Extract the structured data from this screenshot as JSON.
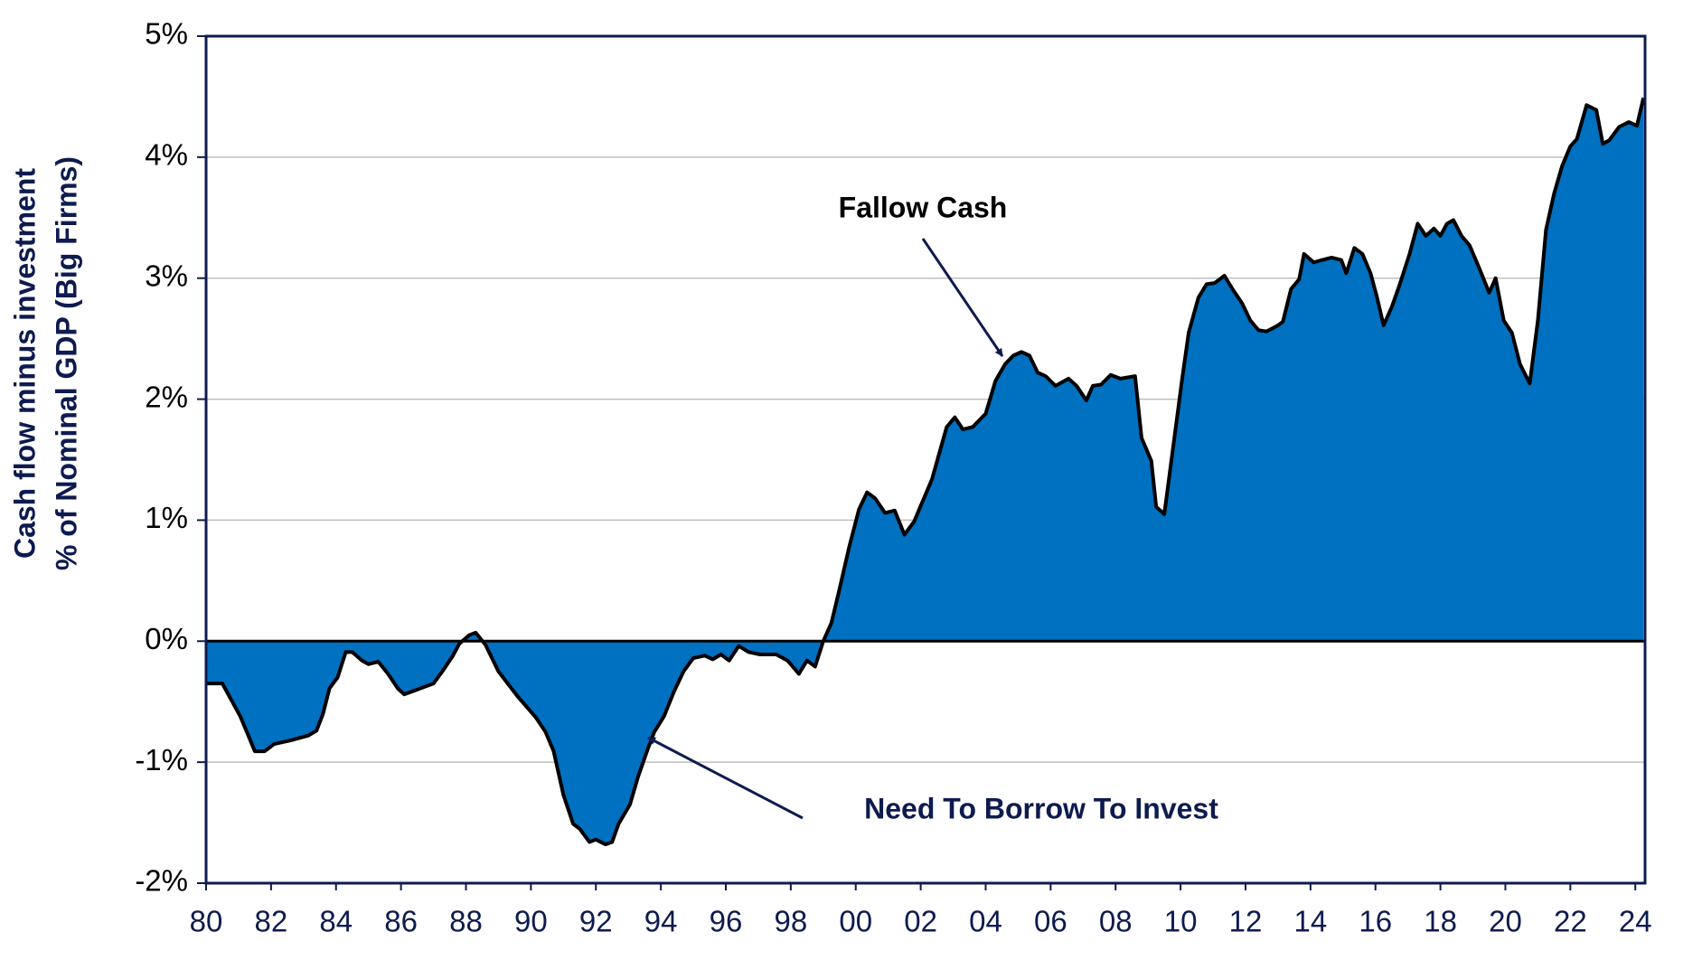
{
  "chart_data": {
    "type": "area",
    "ylabel": [
      "Cash flow minus investment",
      "% of Nominal GDP (Big Firms)"
    ],
    "annotations": [
      "Fallow Cash",
      "Need To Borrow To Invest"
    ],
    "x": [
      1980,
      1980.5,
      1981.05,
      1981.3,
      1981.5,
      1981.8,
      1982.1,
      1982.6,
      1983.15,
      1983.4,
      1983.6,
      1983.8,
      1984.05,
      1984.3,
      1984.5,
      1984.8,
      1985.0,
      1985.3,
      1985.6,
      1985.9,
      1986.1,
      1986.5,
      1987.0,
      1987.3,
      1987.6,
      1987.8,
      1988.1,
      1988.3,
      1988.6,
      1989.0,
      1989.6,
      1990.15,
      1990.45,
      1990.7,
      1991.0,
      1991.3,
      1991.5,
      1991.8,
      1992.0,
      1992.3,
      1992.5,
      1992.7,
      1993.05,
      1993.3,
      1993.6,
      1993.8,
      1994.1,
      1994.4,
      1994.7,
      1995.0,
      1995.35,
      1995.6,
      1995.85,
      1996.1,
      1996.4,
      1996.7,
      1997.05,
      1997.55,
      1997.9,
      1998.25,
      1998.5,
      1998.75,
      1999.0,
      1999.25,
      1999.5,
      1999.8,
      2000.1,
      2000.35,
      2000.6,
      2000.9,
      2001.2,
      2001.5,
      2001.8,
      2002.05,
      2002.35,
      2002.6,
      2002.8,
      2003.05,
      2003.3,
      2003.6,
      2004.0,
      2004.3,
      2004.6,
      2004.85,
      2005.1,
      2005.35,
      2005.6,
      2005.85,
      2006.15,
      2006.55,
      2006.8,
      2007.1,
      2007.3,
      2007.55,
      2007.85,
      2008.15,
      2008.6,
      2008.8,
      2009.1,
      2009.25,
      2009.5,
      2009.75,
      2010.05,
      2010.25,
      2010.55,
      2010.8,
      2011.05,
      2011.35,
      2011.6,
      2011.9,
      2012.15,
      2012.4,
      2012.65,
      2013.0,
      2013.15,
      2013.4,
      2013.65,
      2013.8,
      2014.1,
      2014.35,
      2014.65,
      2014.95,
      2015.1,
      2015.35,
      2015.6,
      2015.85,
      2016.05,
      2016.25,
      2016.5,
      2016.75,
      2017.05,
      2017.3,
      2017.55,
      2017.8,
      2018.0,
      2018.2,
      2018.4,
      2018.65,
      2018.9,
      2019.2,
      2019.5,
      2019.7,
      2019.95,
      2020.2,
      2020.45,
      2020.75,
      2021.0,
      2021.25,
      2021.5,
      2021.75,
      2022.0,
      2022.2,
      2022.5,
      2022.8,
      2023.0,
      2023.2,
      2023.5,
      2023.8,
      2024.05,
      2024.25
    ],
    "series": [
      {
        "color": "#0070c0",
        "line_color": "#000000",
        "values": [
          -0.35,
          -0.35,
          -0.62,
          -0.78,
          -0.91,
          -0.91,
          -0.85,
          -0.82,
          -0.78,
          -0.74,
          -0.6,
          -0.39,
          -0.3,
          -0.09,
          -0.09,
          -0.16,
          -0.19,
          -0.17,
          -0.27,
          -0.39,
          -0.44,
          -0.4,
          -0.35,
          -0.24,
          -0.12,
          -0.02,
          0.05,
          0.07,
          -0.03,
          -0.25,
          -0.46,
          -0.63,
          -0.75,
          -0.91,
          -1.27,
          -1.51,
          -1.55,
          -1.66,
          -1.64,
          -1.68,
          -1.66,
          -1.51,
          -1.35,
          -1.12,
          -0.89,
          -0.75,
          -0.62,
          -0.42,
          -0.25,
          -0.14,
          -0.12,
          -0.15,
          -0.11,
          -0.16,
          -0.04,
          -0.09,
          -0.11,
          -0.11,
          -0.16,
          -0.27,
          -0.16,
          -0.21,
          0.0,
          0.15,
          0.43,
          0.78,
          1.09,
          1.23,
          1.18,
          1.06,
          1.08,
          0.88,
          0.99,
          1.15,
          1.34,
          1.58,
          1.77,
          1.85,
          1.75,
          1.77,
          1.88,
          2.15,
          2.29,
          2.36,
          2.39,
          2.36,
          2.22,
          2.19,
          2.11,
          2.17,
          2.11,
          1.99,
          2.11,
          2.12,
          2.2,
          2.17,
          2.19,
          1.68,
          1.49,
          1.11,
          1.05,
          1.56,
          2.17,
          2.55,
          2.84,
          2.95,
          2.96,
          3.02,
          2.91,
          2.79,
          2.65,
          2.57,
          2.56,
          2.61,
          2.64,
          2.91,
          2.99,
          3.2,
          3.13,
          3.15,
          3.17,
          3.15,
          3.04,
          3.25,
          3.2,
          3.04,
          2.84,
          2.61,
          2.76,
          2.95,
          3.2,
          3.45,
          3.35,
          3.41,
          3.35,
          3.45,
          3.48,
          3.35,
          3.27,
          3.08,
          2.88,
          3.0,
          2.65,
          2.55,
          2.29,
          2.13,
          2.65,
          3.4,
          3.7,
          3.93,
          4.09,
          4.15,
          4.43,
          4.39,
          4.11,
          4.14,
          4.25,
          4.29,
          4.26,
          4.49
        ]
      }
    ],
    "xlim": [
      1980,
      2024.3
    ],
    "xticks": [
      {
        "value": 1980,
        "label": "80"
      },
      {
        "value": 1982,
        "label": "82"
      },
      {
        "value": 1984,
        "label": "84"
      },
      {
        "value": 1986,
        "label": "86"
      },
      {
        "value": 1988,
        "label": "88"
      },
      {
        "value": 1990,
        "label": "90"
      },
      {
        "value": 1992,
        "label": "92"
      },
      {
        "value": 1994,
        "label": "94"
      },
      {
        "value": 1996,
        "label": "96"
      },
      {
        "value": 1998,
        "label": "98"
      },
      {
        "value": 2000,
        "label": "00"
      },
      {
        "value": 2002,
        "label": "02"
      },
      {
        "value": 2004,
        "label": "04"
      },
      {
        "value": 2006,
        "label": "06"
      },
      {
        "value": 2008,
        "label": "08"
      },
      {
        "value": 2010,
        "label": "10"
      },
      {
        "value": 2012,
        "label": "12"
      },
      {
        "value": 2014,
        "label": "14"
      },
      {
        "value": 2016,
        "label": "16"
      },
      {
        "value": 2018,
        "label": "18"
      },
      {
        "value": 2020,
        "label": "20"
      },
      {
        "value": 2022,
        "label": "22"
      },
      {
        "value": 2024,
        "label": "24"
      }
    ],
    "ylim": [
      -2,
      5
    ],
    "yticks": [
      {
        "value": -2,
        "label": "-2%"
      },
      {
        "value": -1,
        "label": "-1%"
      },
      {
        "value": 0,
        "label": "0%"
      },
      {
        "value": 1,
        "label": "1%"
      },
      {
        "value": 2,
        "label": "2%"
      },
      {
        "value": 3,
        "label": "3%"
      },
      {
        "value": 4,
        "label": "4%"
      },
      {
        "value": 5,
        "label": "5%"
      }
    ],
    "grid": true
  }
}
